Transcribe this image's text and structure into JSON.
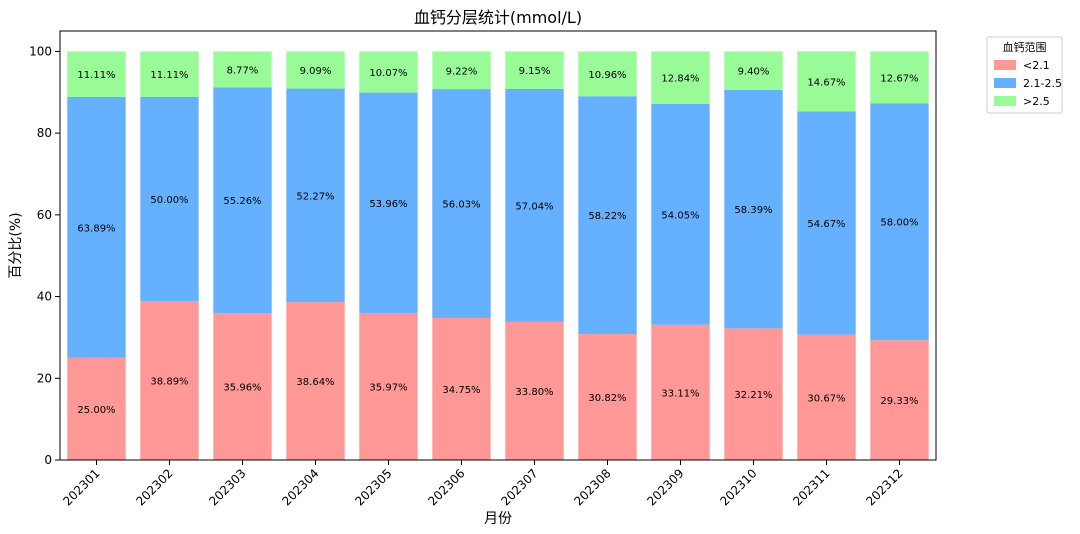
{
  "chart_data": {
    "type": "bar",
    "stacked": true,
    "title": "血钙分层统计(mmol/L)",
    "xlabel": "月份",
    "ylabel": "百分比(%)",
    "ylim": [
      0,
      105
    ],
    "yticks": [
      0,
      20,
      40,
      60,
      80,
      100
    ],
    "categories": [
      "202301",
      "202302",
      "202303",
      "202304",
      "202305",
      "202306",
      "202307",
      "202308",
      "202309",
      "202310",
      "202311",
      "202312"
    ],
    "series": [
      {
        "name": "<2.1",
        "color": "#ff9896",
        "values": [
          25.0,
          38.89,
          35.96,
          38.64,
          35.97,
          34.75,
          33.8,
          30.82,
          33.11,
          32.21,
          30.67,
          29.33
        ],
        "labels": [
          "25.00%",
          "38.89%",
          "35.96%",
          "38.64%",
          "35.97%",
          "34.75%",
          "33.80%",
          "30.82%",
          "33.11%",
          "32.21%",
          "30.67%",
          "29.33%"
        ]
      },
      {
        "name": "2.1-2.5",
        "color": "#66b1ff",
        "values": [
          63.89,
          50.0,
          55.26,
          52.27,
          53.96,
          56.03,
          57.04,
          58.22,
          54.05,
          58.39,
          54.67,
          58.0
        ],
        "labels": [
          "63.89%",
          "50.00%",
          "55.26%",
          "52.27%",
          "53.96%",
          "56.03%",
          "57.04%",
          "58.22%",
          "54.05%",
          "58.39%",
          "54.67%",
          "58.00%"
        ]
      },
      {
        "name": ">2.5",
        "color": "#98fb98",
        "values": [
          11.11,
          11.11,
          8.77,
          9.09,
          10.07,
          9.22,
          9.15,
          10.96,
          12.84,
          9.4,
          14.67,
          12.67
        ],
        "labels": [
          "11.11%",
          "11.11%",
          "8.77%",
          "9.09%",
          "10.07%",
          "9.22%",
          "9.15%",
          "10.96%",
          "12.84%",
          "9.40%",
          "14.67%",
          "12.67%"
        ]
      }
    ],
    "legend": {
      "title": "血钙范围",
      "placement": "outside-top-right"
    },
    "grid": false
  }
}
